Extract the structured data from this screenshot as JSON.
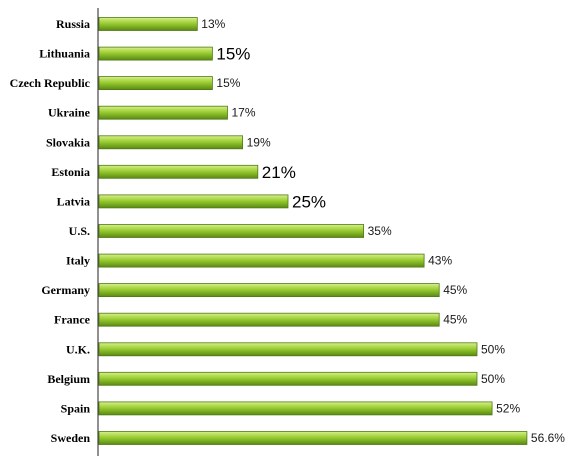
{
  "chart_data": {
    "type": "bar",
    "orientation": "horizontal",
    "categories": [
      "Russia",
      "Lithuania",
      "Czech Republic",
      "Ukraine",
      "Slovakia",
      "Estonia",
      "Latvia",
      "U.S.",
      "Italy",
      "Germany",
      "France",
      "U.K.",
      "Belgium",
      "Spain",
      "Sweden"
    ],
    "values": [
      13,
      15,
      15,
      17,
      19,
      21,
      25,
      35,
      43,
      45,
      45,
      50,
      50,
      52,
      56.6
    ],
    "value_labels": [
      "13%",
      "15%",
      "15%",
      "17%",
      "19%",
      "21%",
      "25%",
      "35%",
      "43%",
      "45%",
      "45%",
      "50%",
      "50%",
      "52%",
      "56.6%"
    ],
    "emphasized_labels": [
      "Lithuania",
      "Estonia",
      "Latvia"
    ],
    "title": "",
    "xlabel": "",
    "ylabel": "",
    "xlim": [
      0,
      57
    ],
    "grid": false,
    "legend": "none",
    "bar_color_light": "#d8f08a",
    "bar_color_mid": "#9acd32",
    "bar_color_dark": "#5a8a12",
    "bar_edge_color": "#4f7a14"
  }
}
